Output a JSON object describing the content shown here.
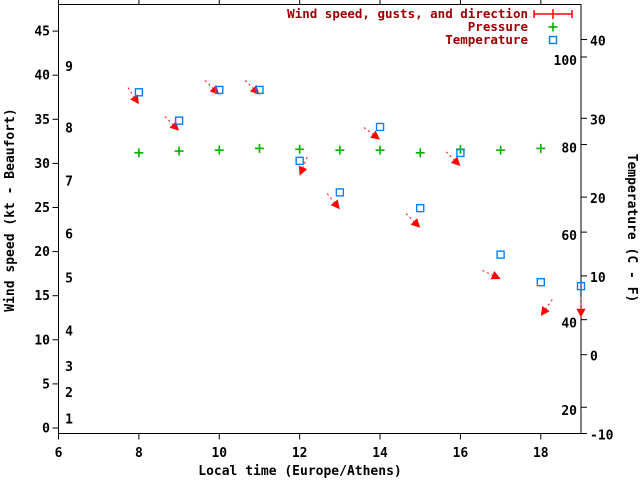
{
  "colors": {
    "wind": "#ff0000",
    "pressure": "#00b000",
    "temperature": "#0080ff",
    "legend_text": "#990000",
    "axis": "#000000",
    "background": "#ffffff"
  },
  "chart_data": {
    "type": "scatter",
    "title": "",
    "xlabel": "Local time (Europe/Athens)",
    "ylabel_left": "Wind speed (kt - Beaufort)",
    "ylabel_right": "Temperature (C - F)",
    "x_range": [
      6,
      19
    ],
    "x_ticks": [
      6,
      8,
      10,
      12,
      14,
      16,
      18
    ],
    "left_axis_kt_ticks": [
      0,
      5,
      10,
      15,
      20,
      25,
      30,
      35,
      40,
      45
    ],
    "left_axis_kt_range": [
      0,
      48
    ],
    "beaufort_scale_labels": [
      {
        "label": "1",
        "kt": 1
      },
      {
        "label": "2",
        "kt": 4
      },
      {
        "label": "3",
        "kt": 7
      },
      {
        "label": "4",
        "kt": 11
      },
      {
        "label": "5",
        "kt": 17
      },
      {
        "label": "6",
        "kt": 22
      },
      {
        "label": "7",
        "kt": 28
      },
      {
        "label": "8",
        "kt": 34
      },
      {
        "label": "9",
        "kt": 41
      }
    ],
    "right_axis_c_ticks": [
      40,
      30,
      20,
      10,
      0,
      -10
    ],
    "right_axis_c_range": [
      -10,
      44
    ],
    "right_axis_f_labels": [
      100,
      80,
      60,
      40,
      20
    ],
    "grid": false,
    "legend_position": "top-right",
    "legend": [
      {
        "label": "Wind speed, gusts, and direction",
        "series": "wind",
        "symbol": "errorbar",
        "color": "#ff0000"
      },
      {
        "label": "Pressure",
        "series": "pressure",
        "symbol": "plus",
        "color": "#00b000"
      },
      {
        "label": "Temperature",
        "series": "temperature",
        "symbol": "open-square",
        "color": "#0080ff"
      }
    ],
    "series": {
      "times": [
        8,
        9,
        10,
        11,
        12,
        13,
        14,
        15,
        16,
        17,
        18,
        19
      ],
      "temperature_c": [
        33.3,
        29.7,
        33.6,
        33.6,
        24.6,
        20.6,
        28.9,
        18.6,
        25.6,
        12.7,
        9.2,
        8.7
      ],
      "wind_speed_kt": [
        36.7,
        33.7,
        37.8,
        37.8,
        28.6,
        24.8,
        32.7,
        22.7,
        29.7,
        16.9,
        12.7,
        12.5
      ],
      "wind_gust_kt": [
        38.7,
        35.0,
        38.8,
        38.8,
        29.7,
        26.0,
        33.7,
        23.7,
        30.8,
        17.7,
        13.9,
        14.2
      ],
      "wind_dir_to_deg": [
        147,
        135,
        135,
        135,
        202,
        141,
        127,
        135,
        135,
        115,
        215,
        180
      ],
      "pressure_times": [
        8,
        9,
        10,
        11,
        12,
        13,
        14,
        15,
        16,
        17,
        18
      ],
      "pressure_left_axis_equiv": [
        31.2,
        31.4,
        31.5,
        31.7,
        31.6,
        31.5,
        31.5,
        31.2,
        31.6,
        31.5,
        31.7
      ]
    }
  }
}
